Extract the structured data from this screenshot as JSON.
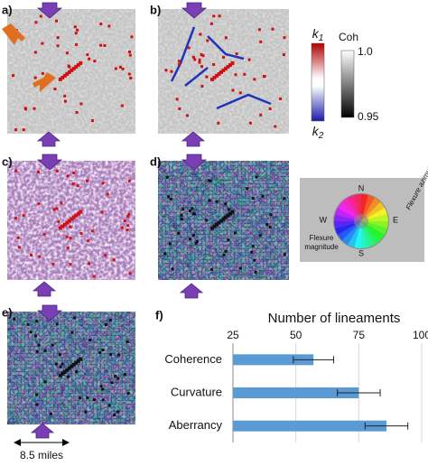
{
  "panels": {
    "a": "a)",
    "b": "b)",
    "c": "c)",
    "d": "d)",
    "e": "e)",
    "f": "f)"
  },
  "colorbars": {
    "k_top": {
      "base": "k",
      "sub": "1"
    },
    "k_bottom": {
      "base": "k",
      "sub": "2"
    },
    "coh_title": "Coh",
    "coh_max": "1.0",
    "coh_min": "0.95"
  },
  "wheel": {
    "n": "N",
    "e": "E",
    "s": "S",
    "w": "W",
    "azimuth": "Flexure azimuth",
    "magnitude": [
      "Flexure",
      "magnitude"
    ]
  },
  "scale_bar": "8.5 miles",
  "chart_data": {
    "type": "bar",
    "orientation": "horizontal",
    "title": "Number of lineaments",
    "categories": [
      "Coherence",
      "Curvature",
      "Aberrancy"
    ],
    "values": [
      57,
      75,
      86
    ],
    "errors": [
      8,
      8.5,
      8.5
    ],
    "color": "#5b9bd5",
    "xlim": [
      25,
      100
    ],
    "xticks": [
      25,
      50,
      75,
      100
    ],
    "grid": true
  }
}
